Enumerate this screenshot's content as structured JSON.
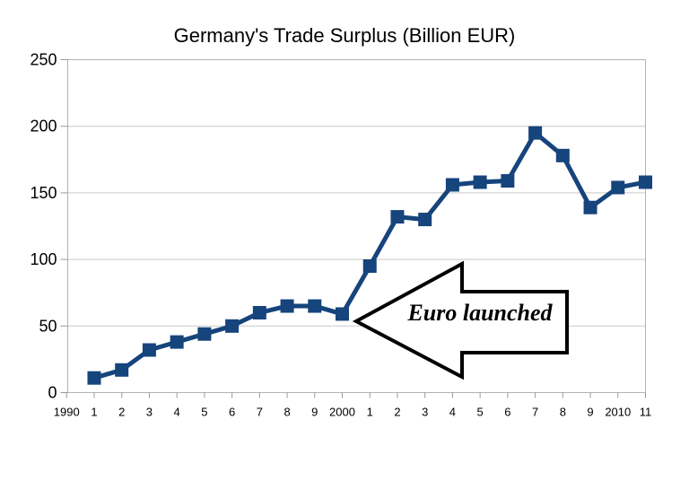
{
  "chart_data": {
    "type": "line",
    "title": "Germany's Trade Surplus (Billion EUR)",
    "categories": [
      "1990",
      "1",
      "2",
      "3",
      "4",
      "5",
      "6",
      "7",
      "8",
      "9",
      "2000",
      "1",
      "2",
      "3",
      "4",
      "5",
      "6",
      "7",
      "8",
      "9",
      "2010",
      "11"
    ],
    "series": [
      {
        "values": [
          null,
          11,
          17,
          32,
          38,
          44,
          50,
          60,
          65,
          65,
          59,
          95,
          132,
          130,
          156,
          158,
          159,
          195,
          178,
          139,
          154,
          158
        ]
      }
    ],
    "xlabel": "",
    "ylabel": "",
    "ylim": [
      0,
      250
    ],
    "yticks": [
      0,
      50,
      100,
      150,
      200,
      250
    ],
    "grid": true,
    "legend": false,
    "marker": "square",
    "annotation": {
      "label": "Euro launched",
      "shape": "left-block-arrow"
    }
  },
  "colors": {
    "line": "#16447c",
    "grid": "#c9c9c9",
    "plot_border": "#b3b3b3",
    "tick": "#999999",
    "text": "#000000",
    "annotation_fill": "#ffffff",
    "annotation_outline": "#000000",
    "background": "#ffffff"
  }
}
